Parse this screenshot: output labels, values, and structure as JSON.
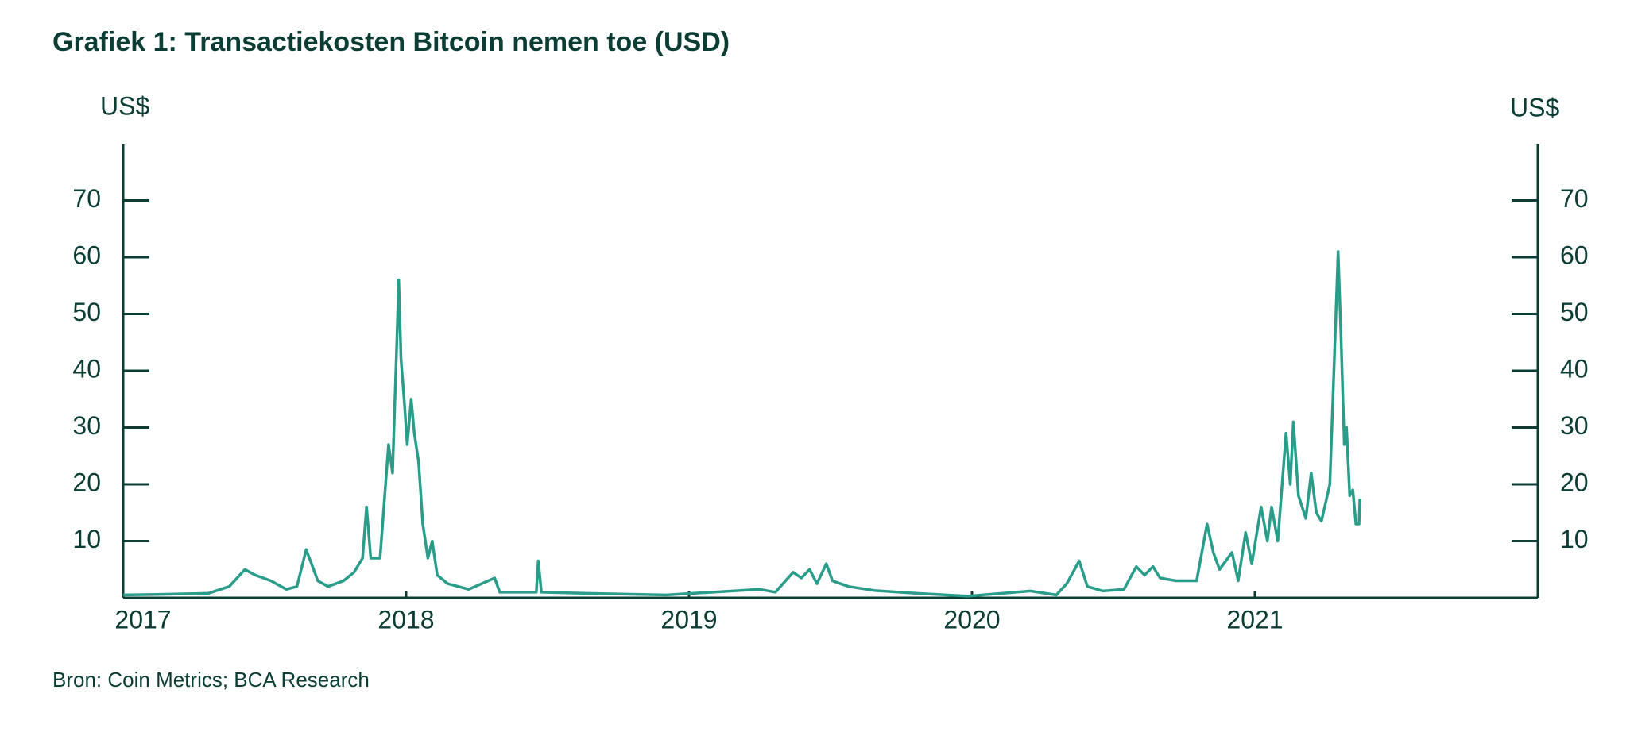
{
  "chart_data": {
    "type": "line",
    "title": "Grafiek 1: Transactiekosten Bitcoin nemen toe (USD)",
    "y_label": "US$",
    "y2_label": "US$",
    "source": "Bron: Coin Metrics; BCA Research",
    "xlim": [
      2017,
      2022
    ],
    "xticks": [
      2017,
      2018,
      2019,
      2020,
      2021
    ],
    "ylim": [
      0,
      80
    ],
    "yticks": [
      10,
      20,
      30,
      40,
      50,
      60,
      70
    ],
    "y2lim": [
      0,
      80
    ],
    "y2ticks": [
      10,
      20,
      30,
      40,
      50,
      60,
      70
    ],
    "series": [
      {
        "name": "Transactiekosten",
        "color": "#2a9d8a",
        "x": [
          2017.0,
          2017.118,
          2017.301,
          2017.375,
          2017.43,
          2017.467,
          2017.522,
          2017.577,
          2017.614,
          2017.647,
          2017.688,
          2017.724,
          2017.779,
          2017.816,
          2017.846,
          2017.86,
          2017.875,
          2017.908,
          2017.938,
          2017.952,
          2017.967,
          2017.974,
          2017.982,
          2017.993,
          2018.004,
          2018.018,
          2018.029,
          2018.044,
          2018.059,
          2018.077,
          2018.092,
          2018.11,
          2018.147,
          2018.221,
          2018.313,
          2018.331,
          2018.46,
          2018.467,
          2018.478,
          2018.625,
          2018.919,
          2019.25,
          2019.305,
          2019.368,
          2019.397,
          2019.426,
          2019.452,
          2019.485,
          2019.507,
          2019.563,
          2019.654,
          2019.801,
          2019.985,
          2020.206,
          2020.298,
          2020.335,
          2020.379,
          2020.408,
          2020.463,
          2020.537,
          2020.581,
          2020.61,
          2020.64,
          2020.665,
          2020.721,
          2020.794,
          2020.831,
          2020.853,
          2020.875,
          2020.919,
          2020.941,
          2020.967,
          2020.989,
          2021.022,
          2021.044,
          2021.059,
          2021.081,
          2021.11,
          2021.125,
          2021.136,
          2021.154,
          2021.18,
          2021.199,
          2021.217,
          2021.235,
          2021.265,
          2021.283,
          2021.294,
          2021.305,
          2021.316,
          2021.324,
          2021.335,
          2021.346,
          2021.357,
          2021.368,
          2021.371
        ],
        "values": [
          0.5,
          0.6,
          0.8,
          2,
          5,
          4,
          3,
          1.5,
          2,
          8.5,
          3,
          2,
          3,
          4.5,
          7,
          16,
          7,
          7,
          27,
          22,
          45,
          56,
          42,
          35,
          27,
          35,
          29,
          24,
          13,
          7,
          10,
          4,
          2.5,
          1.5,
          3.5,
          1,
          1,
          6.5,
          1,
          0.8,
          0.5,
          1.5,
          1,
          4.5,
          3.5,
          5,
          2.5,
          6,
          3,
          2,
          1.3,
          0.8,
          0.3,
          1.2,
          0.5,
          2.5,
          6.5,
          2,
          1.2,
          1.5,
          5.5,
          4,
          5.5,
          3.5,
          3,
          3,
          13,
          8,
          5,
          8,
          3,
          11.5,
          6,
          16,
          10,
          16,
          10,
          29,
          20,
          31,
          18,
          14,
          22,
          15,
          13.5,
          20,
          45,
          61,
          45,
          27,
          30,
          18,
          19,
          13,
          13,
          17.5
        ]
      }
    ]
  }
}
